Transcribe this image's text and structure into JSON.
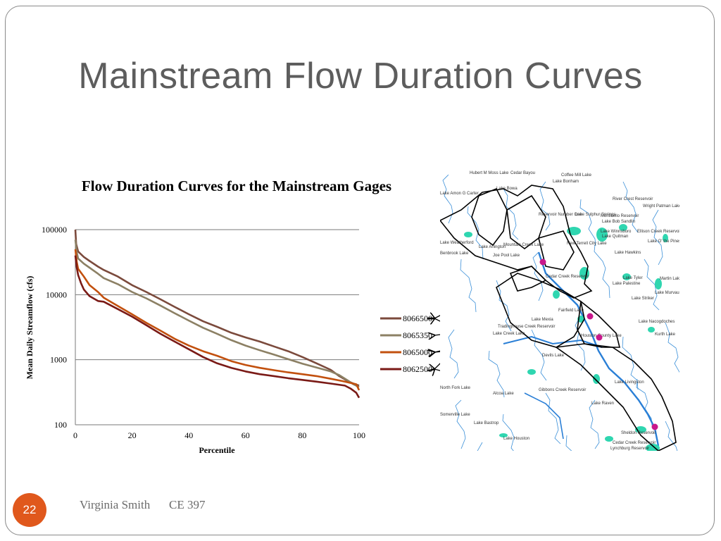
{
  "slide": {
    "title": "Mainstream Flow Duration Curves",
    "page_number": "22",
    "author": "Virginia Smith",
    "course": "CE 397"
  },
  "chart_data": {
    "type": "line",
    "title": "Flow Duration Curves for the Mainstream Gages",
    "xlabel": "Percentile",
    "ylabel": "Mean Daily Streamflow (cfs)",
    "xlim": [
      0,
      100
    ],
    "ylim": [
      100,
      100000
    ],
    "yscale": "log",
    "xticks": [
      "0",
      "20",
      "40",
      "60",
      "80",
      "100"
    ],
    "yticks": [
      "100",
      "1000",
      "10000",
      "100000"
    ],
    "grid": "horizontal",
    "legend_position": "right",
    "series": [
      {
        "name": "8066500",
        "color": "#7b4a3c",
        "points": [
          [
            0,
            100000
          ],
          [
            0.3,
            60000
          ],
          [
            1,
            46000
          ],
          [
            3,
            38000
          ],
          [
            5,
            33000
          ],
          [
            8,
            27000
          ],
          [
            10,
            24000
          ],
          [
            15,
            19000
          ],
          [
            20,
            14000
          ],
          [
            25,
            11000
          ],
          [
            30,
            8500
          ],
          [
            35,
            6500
          ],
          [
            40,
            5000
          ],
          [
            45,
            3900
          ],
          [
            50,
            3200
          ],
          [
            55,
            2600
          ],
          [
            60,
            2200
          ],
          [
            65,
            1900
          ],
          [
            70,
            1600
          ],
          [
            75,
            1350
          ],
          [
            80,
            1100
          ],
          [
            85,
            880
          ],
          [
            90,
            700
          ],
          [
            93,
            560
          ],
          [
            96,
            470
          ],
          [
            98,
            430
          ],
          [
            100,
            400
          ]
        ]
      },
      {
        "name": "8065350",
        "color": "#8c8064",
        "points": [
          [
            0,
            70000
          ],
          [
            0.5,
            45000
          ],
          [
            1,
            36000
          ],
          [
            3,
            30000
          ],
          [
            5,
            26000
          ],
          [
            8,
            21000
          ],
          [
            10,
            18000
          ],
          [
            15,
            14500
          ],
          [
            20,
            11000
          ],
          [
            25,
            8800
          ],
          [
            30,
            6800
          ],
          [
            35,
            5200
          ],
          [
            40,
            4000
          ],
          [
            45,
            3100
          ],
          [
            50,
            2500
          ],
          [
            55,
            2000
          ],
          [
            60,
            1650
          ],
          [
            65,
            1400
          ],
          [
            70,
            1200
          ],
          [
            75,
            1020
          ],
          [
            80,
            870
          ],
          [
            85,
            760
          ],
          [
            90,
            660
          ],
          [
            93,
            580
          ],
          [
            96,
            480
          ],
          [
            98,
            420
          ],
          [
            100,
            380
          ]
        ]
      },
      {
        "name": "8065000",
        "color": "#c2500e",
        "points": [
          [
            0,
            50000
          ],
          [
            0.5,
            32000
          ],
          [
            1,
            25000
          ],
          [
            3,
            19000
          ],
          [
            5,
            14000
          ],
          [
            8,
            11000
          ],
          [
            10,
            9000
          ],
          [
            15,
            6700
          ],
          [
            20,
            5000
          ],
          [
            25,
            3700
          ],
          [
            30,
            2800
          ],
          [
            35,
            2100
          ],
          [
            40,
            1650
          ],
          [
            45,
            1350
          ],
          [
            50,
            1150
          ],
          [
            55,
            950
          ],
          [
            60,
            830
          ],
          [
            65,
            750
          ],
          [
            70,
            690
          ],
          [
            75,
            640
          ],
          [
            80,
            600
          ],
          [
            85,
            560
          ],
          [
            90,
            510
          ],
          [
            94,
            470
          ],
          [
            97,
            440
          ],
          [
            99,
            420
          ],
          [
            100,
            340
          ]
        ]
      },
      {
        "name": "8062500",
        "color": "#7a1a16",
        "points": [
          [
            0,
            40000
          ],
          [
            0.5,
            26000
          ],
          [
            1,
            20000
          ],
          [
            2,
            15000
          ],
          [
            3,
            12000
          ],
          [
            5,
            9500
          ],
          [
            8,
            8000
          ],
          [
            10,
            7800
          ],
          [
            15,
            6000
          ],
          [
            20,
            4600
          ],
          [
            25,
            3400
          ],
          [
            30,
            2500
          ],
          [
            35,
            1900
          ],
          [
            40,
            1450
          ],
          [
            45,
            1100
          ],
          [
            50,
            880
          ],
          [
            55,
            750
          ],
          [
            60,
            660
          ],
          [
            65,
            600
          ],
          [
            70,
            560
          ],
          [
            75,
            520
          ],
          [
            80,
            490
          ],
          [
            85,
            460
          ],
          [
            90,
            430
          ],
          [
            95,
            400
          ],
          [
            97,
            360
          ],
          [
            99,
            310
          ],
          [
            100,
            260
          ]
        ]
      }
    ]
  },
  "map": {
    "labels": [
      "Hubert M Moss Lake",
      "Cedar Bayou",
      "Coffee Mill Lake",
      "Lake Bonham",
      "Lake Bowa",
      "Lake Amon G Carter",
      "River Crest Reservoir",
      "Wright Patman Lake",
      "Reservoir Number One",
      "Lake Sulphur Springs",
      "Monticello Reservoir",
      "Lake Bob Sandlin",
      "Lake Winnsboro",
      "Ellison Creek Reservoir",
      "Lake Quitman",
      "Lake O' the Pines",
      "Lake Weatherford",
      "Lake Arlington",
      "Mountain Creek Lake",
      "New Terrell City Lake",
      "Lake Hawkins",
      "Benbrook Lake",
      "Joe Pool Lake",
      "Cedar Creek Reservoir",
      "Lake Tyler",
      "Lake Palestine",
      "Martin Lake",
      "Lake Murvaul",
      "Lake Striker",
      "Fairfield Lake",
      "Lake Mexia",
      "Lake Nacogdoches",
      "Tradinghouse Creek Reservoir",
      "Lake Creek Lake",
      "Houston County Lake",
      "Kurth Lake",
      "Devils Lake",
      "Lake Livingston",
      "North Fork Lake",
      "Alcoa Lake",
      "Gibbons Creek Reservoir",
      "Lake Raven",
      "Somerville Lake",
      "Lake Bastrop",
      "Lake Houston",
      "Sheldon Reservoir",
      "Cedar Creek Reservoir",
      "Lynchburg Reservoir"
    ]
  }
}
